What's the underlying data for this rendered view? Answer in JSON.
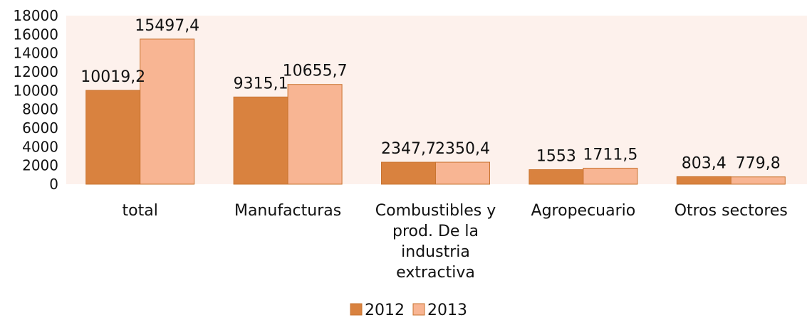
{
  "chart_data": {
    "type": "bar",
    "title": "",
    "xlabel": "",
    "ylabel": "",
    "ylim": [
      0,
      18000
    ],
    "yticks": [
      0,
      2000,
      4000,
      6000,
      8000,
      10000,
      12000,
      14000,
      16000,
      18000
    ],
    "grid": false,
    "legend_position": "bottom",
    "plot_background": "#fdf1ec",
    "categories": [
      [
        "total"
      ],
      [
        "Manufacturas"
      ],
      [
        "Combustibles y",
        "prod. De la",
        "industria",
        "extractiva"
      ],
      [
        "Agropecuario"
      ],
      [
        "Otros sectores"
      ]
    ],
    "series": [
      {
        "name": "2012",
        "color": "#d9823f",
        "values": [
          10019.2,
          9315.1,
          2347.7,
          1553,
          803.4
        ],
        "labels": [
          "10019,2",
          "9315,1",
          "2347,7",
          "1553",
          "803,4"
        ]
      },
      {
        "name": "2013",
        "color": "#f8b593",
        "values": [
          15497.4,
          10655.7,
          2350.4,
          1711.5,
          779.8
        ],
        "labels": [
          "15497,4",
          "10655,7",
          "2350,4",
          "1711,5",
          "779,8"
        ]
      }
    ]
  }
}
